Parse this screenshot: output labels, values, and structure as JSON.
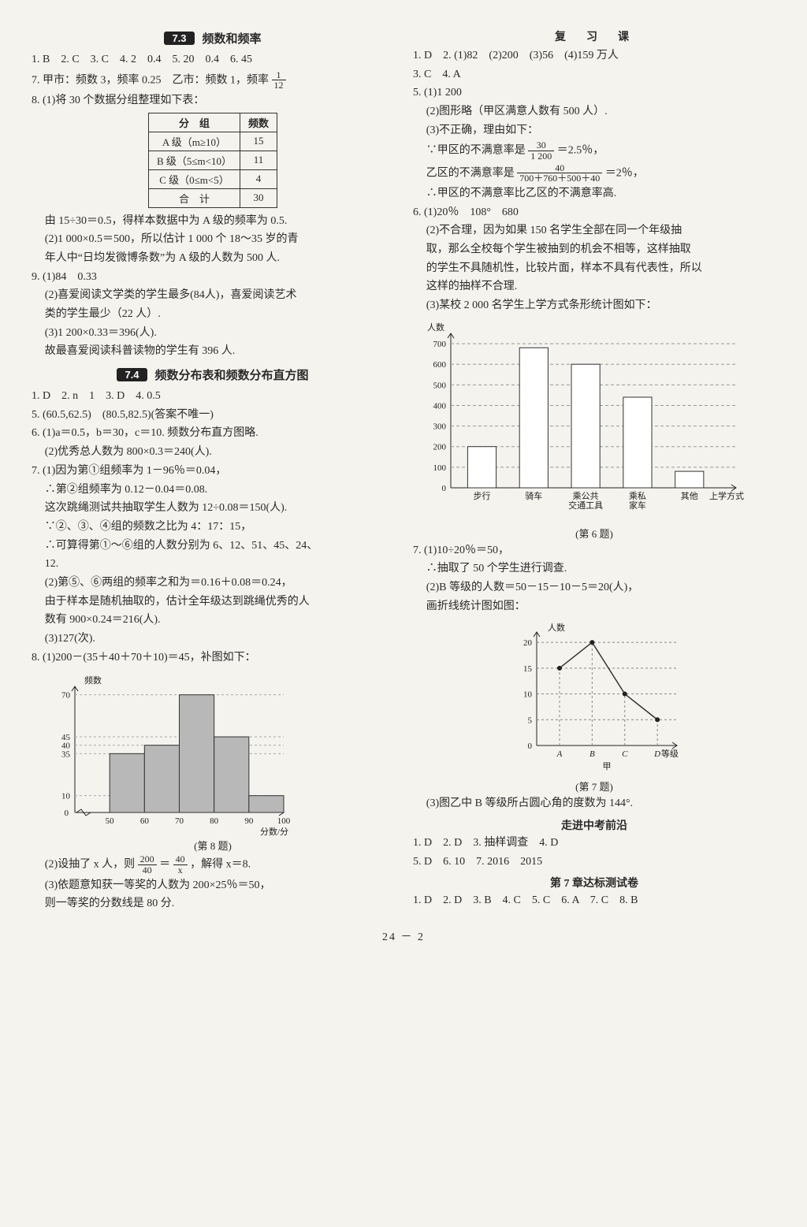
{
  "left": {
    "sec73": {
      "num": "7.3",
      "title": "频数和频率"
    },
    "l1": "1. B　2. C　3. C　4. 2　0.4　5. 20　0.4　6. 45",
    "l2a": "7. 甲市：频数 3，频率 0.25　乙市：频数 1，频率",
    "frac1": {
      "num": "1",
      "den": "12"
    },
    "l3": "8. (1)将 30 个数据分组整理如下表：",
    "table": {
      "head": [
        "分　组",
        "频数"
      ],
      "rows": [
        [
          "A 级（m≥10）",
          "15"
        ],
        [
          "B 级（5≤m<10）",
          "11"
        ],
        [
          "C 级（0≤m<5）",
          "4"
        ],
        [
          "合　计",
          "30"
        ]
      ]
    },
    "l4": "由 15÷30＝0.5，得样本数据中为 A 级的频率为 0.5.",
    "l5": "(2)1 000×0.5＝500，所以估计 1 000 个 18～35 岁的青",
    "l6": "年人中“日均发微博条数”为 A 级的人数为 500 人.",
    "l7": "9. (1)84　0.33",
    "l8": "(2)喜爱阅读文学类的学生最多(84人)，喜爱阅读艺术",
    "l9": "类的学生最少（22 人）.",
    "l10": "(3)1 200×0.33＝396(人).",
    "l11": "故最喜爱阅读科普读物的学生有 396 人.",
    "sec74": {
      "num": "7.4",
      "title": "频数分布表和频数分布直方图"
    },
    "l12": "1. D　2. n　1　3. D　4. 0.5",
    "l13": "5. (60.5,62.5)　(80.5,82.5)(答案不唯一)",
    "l14": "6. (1)a＝0.5，b＝30，c＝10. 频数分布直方图略.",
    "l15": "(2)优秀总人数为 800×0.3＝240(人).",
    "l16": "7. (1)因为第①组频率为 1－96％＝0.04，",
    "l17": "∴第②组频率为 0.12－0.04＝0.08.",
    "l18": "这次跳绳测试共抽取学生人数为 12÷0.08＝150(人).",
    "l19": "∵②、③、④组的频数之比为 4：17：15，",
    "l20": "∴可算得第①～⑥组的人数分别为 6、12、51、45、24、",
    "l20b": "12.",
    "l21": "(2)第⑤、⑥两组的频率之和为＝0.16＋0.08＝0.24，",
    "l22": "由于样本是随机抽取的，估计全年级达到跳绳优秀的人",
    "l23": "数有 900×0.24＝216(人).",
    "l24": "(3)127(次).",
    "l25": "8. (1)200－(35＋40＋70＋10)＝45，补图如下：",
    "hist8": {
      "ylabel": "频数",
      "xlabel": "分数/分",
      "yticks": [
        0,
        10,
        35,
        40,
        45,
        70
      ],
      "xticks": [
        50,
        60,
        70,
        80,
        90,
        100
      ],
      "bars": [
        {
          "x0": 50,
          "x1": 60,
          "y": 35
        },
        {
          "x0": 60,
          "x1": 70,
          "y": 40
        },
        {
          "x0": 70,
          "x1": 80,
          "y": 70
        },
        {
          "x0": 80,
          "x1": 90,
          "y": 45
        },
        {
          "x0": 90,
          "x1": 100,
          "y": 10
        }
      ],
      "bar_fill": "#b8b8b8",
      "bar_stroke": "#333",
      "grid_color": "#aaa",
      "caption": "(第 8 题)"
    },
    "l26a": "(2)设抽了 x 人，则",
    "frac2a": {
      "num": "200",
      "den": "40"
    },
    "l26b": "＝",
    "frac2b": {
      "num": "40",
      "den": "x"
    },
    "l26c": "，解得 x＝8.",
    "l27": "(3)依题意知获一等奖的人数为 200×25％＝50，",
    "l28": "则一等奖的分数线是 80 分."
  },
  "right": {
    "review_title": "复　习　课",
    "r1": "1. D　2. (1)82　(2)200　(3)56　(4)159 万人",
    "r2": "3. C　4. A",
    "r3": "5. (1)1 200",
    "r4": "(2)图形略（甲区满意人数有 500 人）.",
    "r5": "(3)不正确，理由如下：",
    "r6a": "∵甲区的不满意率是",
    "frac3": {
      "num": "30",
      "den": "1 200"
    },
    "r6b": "＝2.5％，",
    "r7a": "乙区的不满意率是",
    "frac4": {
      "num": "40",
      "den": "700＋760＋500＋40"
    },
    "r7b": "＝2％，",
    "r8": "∴甲区的不满意率比乙区的不满意率高.",
    "r9": "6. (1)20％　108°　680",
    "r10": "(2)不合理，因为如果 150 名学生全部在同一个年级抽",
    "r11": "取，那么全校每个学生被抽到的机会不相等，这样抽取",
    "r12": "的学生不具随机性，比较片面，样本不具有代表性，所以",
    "r13": "这样的抽样不合理.",
    "r14": "(3)某校 2 000 名学生上学方式条形统计图如下：",
    "bar6": {
      "ylabel": "人数",
      "xlabel": "上学方式",
      "yticks": [
        0,
        100,
        200,
        300,
        400,
        500,
        600,
        700
      ],
      "cats": [
        "步行",
        "骑车",
        "乘公共\n交通工具",
        "乘私\n家车",
        "其他"
      ],
      "vals": [
        200,
        680,
        600,
        440,
        80
      ],
      "bar_fill": "#ffffff",
      "bar_stroke": "#333",
      "grid_color": "#999",
      "caption": "(第 6 题)"
    },
    "r15": "7. (1)10÷20％＝50，",
    "r16": "∴抽取了 50 个学生进行调查.",
    "r17": "(2)B 等级的人数＝50－15－10－5＝20(人)，",
    "r18": "画折线统计图如图：",
    "line7": {
      "ylabel": "人数",
      "xlabel": "等级",
      "yticks": [
        0,
        5,
        10,
        15,
        20
      ],
      "cats": [
        "A",
        "B",
        "C",
        "D"
      ],
      "vals": [
        15,
        20,
        10,
        5
      ],
      "caption": "(第 7 题)",
      "sublabel": "甲",
      "stroke": "#333",
      "grid_color": "#888"
    },
    "r19": "(3)图乙中 B 等级所占圆心角的度数为 144°.",
    "zk_title": "走进中考前沿",
    "r20": "1. D　2. D　3. 抽样调查　4. D",
    "r21": "5. D　6. 10　7. 2016　2015",
    "ch7_title": "第 7 章达标测试卷",
    "r22": "1. D　2. D　3. B　4. C　5. C　6. A　7. C　8. B"
  },
  "footer": "24 － 2"
}
